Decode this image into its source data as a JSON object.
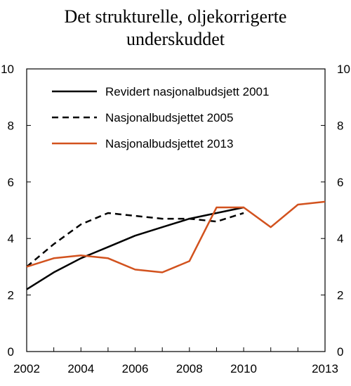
{
  "chart_data": {
    "type": "line",
    "title_lines": [
      "Det strukturelle, oljekorrigerte",
      "underskuddet"
    ],
    "xlabel": "",
    "ylabel": "",
    "xlim": [
      2002,
      2013
    ],
    "ylim": [
      0,
      10
    ],
    "x_ticks": [
      2002,
      2004,
      2006,
      2008,
      2010,
      2013
    ],
    "y_ticks": [
      0,
      2,
      4,
      6,
      8,
      10
    ],
    "grid": false,
    "legend_position": "top-left",
    "series": [
      {
        "name": "Revidert nasjonalbudsjett 2001",
        "color": "#000000",
        "dash": "solid",
        "x": [
          2002,
          2003,
          2004,
          2005,
          2006,
          2007,
          2008,
          2009,
          2010
        ],
        "y": [
          2.2,
          2.8,
          3.3,
          3.7,
          4.1,
          4.4,
          4.7,
          4.9,
          5.1
        ]
      },
      {
        "name": "Nasjonalbudsjettet 2005",
        "color": "#000000",
        "dash": "dashed",
        "x": [
          2002,
          2003,
          2004,
          2005,
          2006,
          2007,
          2008,
          2009,
          2010
        ],
        "y": [
          3.0,
          3.8,
          4.5,
          4.9,
          4.8,
          4.7,
          4.7,
          4.6,
          4.9
        ]
      },
      {
        "name": "Nasjonalbudsjettet 2013",
        "color": "#d2521e",
        "dash": "solid",
        "x": [
          2002,
          2003,
          2004,
          2005,
          2006,
          2007,
          2008,
          2009,
          2010,
          2011,
          2012,
          2013
        ],
        "y": [
          3.0,
          3.3,
          3.4,
          3.3,
          2.9,
          2.8,
          3.2,
          5.1,
          5.1,
          4.4,
          5.2,
          5.3
        ]
      }
    ]
  }
}
